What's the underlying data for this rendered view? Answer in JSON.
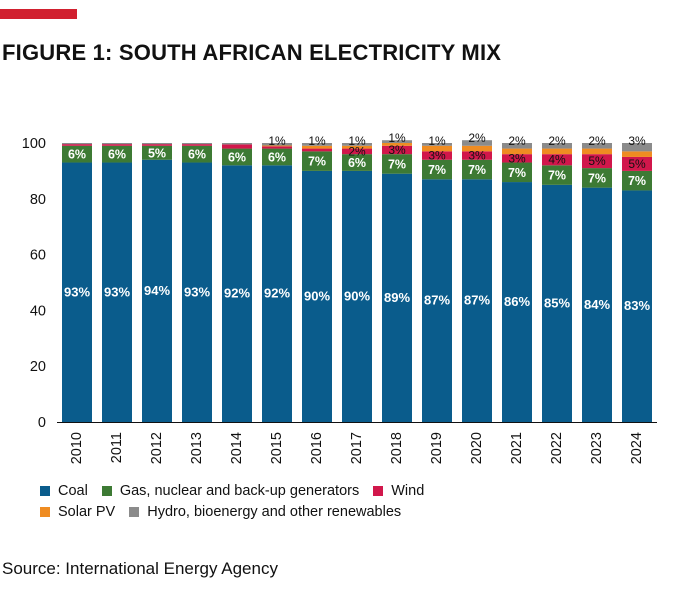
{
  "title": "FIGURE 1: SOUTH AFRICAN ELECTRICITY MIX",
  "source": "Source: International Energy Agency",
  "chart_data": {
    "type": "bar",
    "stacked": true,
    "ylim": [
      0,
      100
    ],
    "yticks": [
      0,
      20,
      40,
      60,
      80,
      100
    ],
    "categories": [
      "2010",
      "2011",
      "2012",
      "2013",
      "2014",
      "2015",
      "2016",
      "2017",
      "2018",
      "2019",
      "2020",
      "2021",
      "2022",
      "2023",
      "2024"
    ],
    "series": [
      {
        "name": "Coal",
        "color": "#0a5c8c",
        "values": [
          93,
          93,
          94,
          93,
          92,
          92,
          90,
          90,
          89,
          87,
          87,
          86,
          85,
          84,
          83
        ],
        "labels": [
          "93%",
          "93%",
          "94%",
          "93%",
          "92%",
          "92%",
          "90%",
          "90%",
          "89%",
          "87%",
          "87%",
          "86%",
          "85%",
          "84%",
          "83%"
        ]
      },
      {
        "name": "Gas, nuclear and back-up generators",
        "color": "#3d7a34",
        "values": [
          6,
          6,
          5,
          6,
          6,
          6,
          7,
          6,
          7,
          7,
          7,
          7,
          7,
          7,
          7
        ],
        "labels": [
          "6%",
          "6%",
          "5%",
          "6%",
          "6%",
          "6%",
          "7%",
          "6%",
          "7%",
          "7%",
          "7%",
          "7%",
          "7%",
          "7%",
          "7%"
        ]
      },
      {
        "name": "Wind",
        "color": "#d1174b",
        "values": [
          0.6,
          0.6,
          0.6,
          0.6,
          1.5,
          0.8,
          1,
          2,
          3,
          3,
          3,
          3,
          4,
          5,
          5
        ],
        "labels": [
          "",
          "",
          "",
          "",
          "",
          "",
          "",
          "2%",
          "3%",
          "3%",
          "3%",
          "3%",
          "4%",
          "5%",
          "5%"
        ]
      },
      {
        "name": "Solar PV",
        "color": "#ef8c22",
        "values": [
          0,
          0,
          0,
          0,
          0,
          0.3,
          1,
          1,
          1,
          2,
          2,
          2,
          2,
          2,
          2
        ],
        "labels": [
          "",
          "",
          "",
          "",
          "",
          "",
          "",
          "",
          "",
          "",
          "",
          "",
          "",
          "",
          ""
        ]
      },
      {
        "name": "Hydro, bioenergy and other renewables",
        "color": "#8b8b8b",
        "values": [
          0.4,
          0.4,
          0.4,
          0.4,
          0.5,
          0.9,
          1,
          1,
          1,
          1,
          2,
          2,
          2,
          2,
          3
        ],
        "labels": [
          "",
          "",
          "",
          "",
          "",
          "1%",
          "1%",
          "1%",
          "1%",
          "1%",
          "2%",
          "2%",
          "2%",
          "2%",
          "3%"
        ]
      }
    ]
  }
}
